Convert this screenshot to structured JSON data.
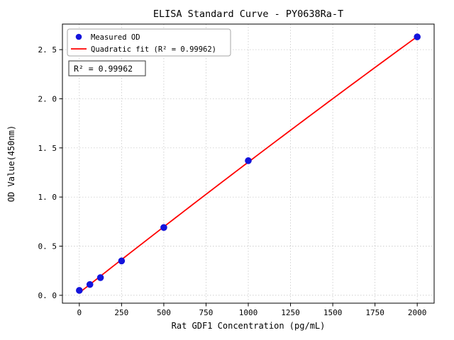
{
  "chart_data": {
    "type": "scatter",
    "title": "ELISA Standard Curve - PY0638Ra-T",
    "xlabel": "Rat GDF1 Concentration (pg/mL)",
    "ylabel": "OD Value(450nm)",
    "xlim": [
      -100,
      2100
    ],
    "ylim": [
      -0.08,
      2.76
    ],
    "x_ticks": [
      0,
      250,
      500,
      750,
      1000,
      1250,
      1500,
      1750,
      2000
    ],
    "x_tick_labels": [
      "0",
      "250",
      "500",
      "750",
      "1000",
      "1250",
      "1500",
      "1750",
      "2000"
    ],
    "y_ticks": [
      0.0,
      0.5,
      1.0,
      1.5,
      2.0,
      2.5
    ],
    "y_tick_labels": [
      "0. 0",
      "0. 5",
      "1. 0",
      "1. 5",
      "2. 0",
      "2. 5"
    ],
    "grid": true,
    "series": [
      {
        "name": "Measured OD",
        "type": "scatter",
        "color": "#1414dc",
        "x": [
          0,
          62.5,
          125,
          250,
          500,
          1000,
          2000
        ],
        "y": [
          0.05,
          0.11,
          0.18,
          0.35,
          0.69,
          1.37,
          2.63
        ]
      },
      {
        "name": "Quadratic fit (R² = 0.99962)",
        "type": "quadratic-fit-line",
        "color": "#ff0000",
        "fit_of_series": 0
      }
    ],
    "legend": {
      "position": "upper-left",
      "entries": [
        "Measured OD",
        "Quadratic fit (R² = 0.99962)"
      ]
    },
    "annotation": {
      "text": "R² = 0.99962",
      "r_squared": 0.99962
    },
    "colors": {
      "marker": "#1414dc",
      "fit_line": "#ff0000",
      "grid": "#bfbfbf",
      "spine": "#000000",
      "legend_border": "#a6a6a6",
      "annotation_border": "#333333"
    }
  }
}
